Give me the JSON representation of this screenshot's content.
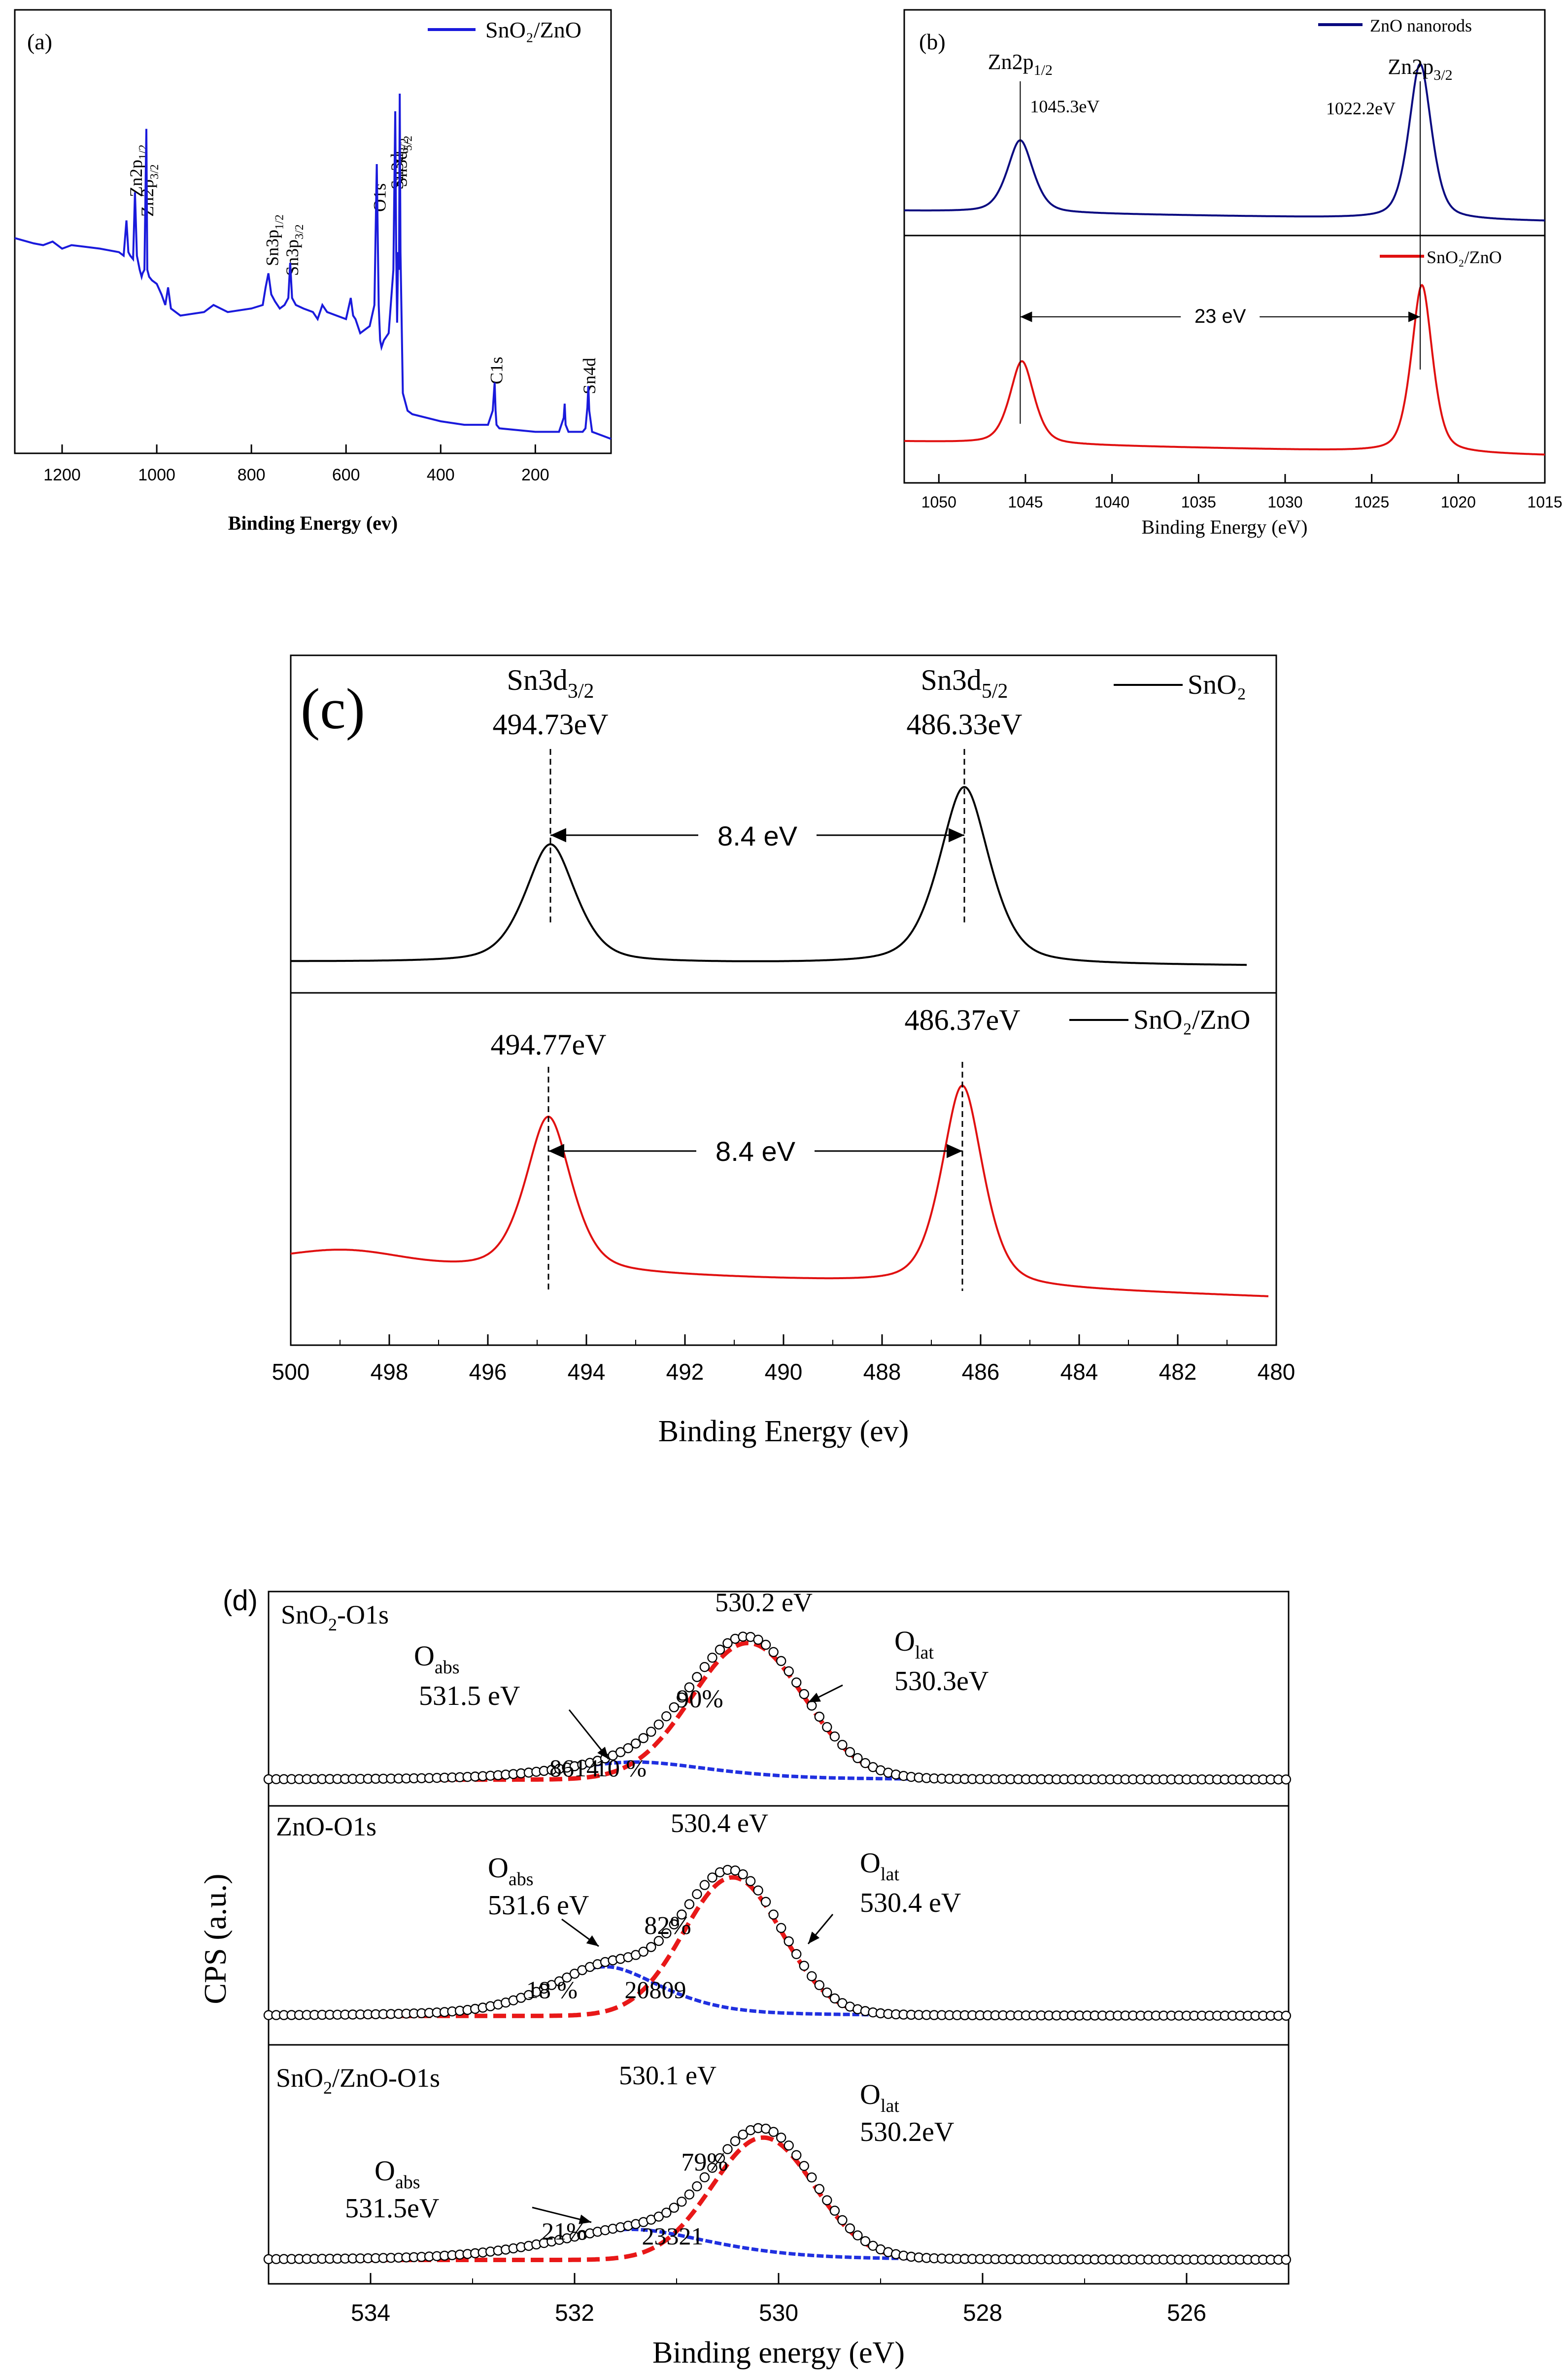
{
  "chart_data": [
    {
      "id": "a",
      "type": "line",
      "panel_label": "(a)",
      "xlabel": "Binding Energy (ev)",
      "xlim": [
        1300,
        40
      ],
      "xticks": [
        1200,
        1000,
        800,
        600,
        400,
        200
      ],
      "tick_labels": [
        "1200",
        "1000",
        "800",
        "600",
        "400",
        "200"
      ],
      "legend": [
        "SnO₂/ZnO"
      ],
      "series": [
        {
          "name": "SnO₂/ZnO",
          "color": "#1a1adc",
          "x": [
            1300,
            1260,
            1240,
            1220,
            1200,
            1180,
            1150,
            1120,
            1100,
            1080,
            1070,
            1064,
            1060,
            1056,
            1050,
            1046,
            1042,
            1036,
            1032,
            1030,
            1026,
            1022,
            1020,
            1016,
            1010,
            1000,
            990,
            982,
            976,
            970,
            950,
            900,
            880,
            850,
            800,
            776,
            770,
            764,
            758,
            750,
            740,
            730,
            722,
            718,
            714,
            706,
            690,
            670,
            660,
            650,
            640,
            620,
            600,
            590,
            585,
            580,
            570,
            560,
            550,
            540,
            535,
            531,
            528,
            525,
            520,
            510,
            500,
            496,
            494,
            492,
            490,
            488,
            486.5,
            485,
            480,
            470,
            460,
            400,
            350,
            300,
            290,
            286,
            284,
            282,
            276,
            200,
            150,
            140,
            138,
            136,
            130,
            100,
            94,
            90,
            88,
            86,
            80,
            60,
            40
          ],
          "y": [
            0.59,
            0.575,
            0.57,
            0.58,
            0.56,
            0.57,
            0.565,
            0.56,
            0.555,
            0.55,
            0.54,
            0.64,
            0.55,
            0.54,
            0.53,
            0.72,
            0.54,
            0.5,
            0.48,
            0.49,
            0.5,
            0.9,
            0.5,
            0.48,
            0.47,
            0.46,
            0.43,
            0.4,
            0.45,
            0.39,
            0.37,
            0.38,
            0.4,
            0.38,
            0.39,
            0.4,
            0.45,
            0.49,
            0.43,
            0.41,
            0.39,
            0.4,
            0.42,
            0.52,
            0.42,
            0.4,
            0.39,
            0.38,
            0.36,
            0.4,
            0.38,
            0.37,
            0.36,
            0.42,
            0.37,
            0.36,
            0.32,
            0.33,
            0.34,
            0.4,
            0.8,
            0.4,
            0.3,
            0.28,
            0.3,
            0.32,
            0.5,
            0.95,
            0.55,
            0.35,
            0.55,
            0.5,
            1.0,
            0.55,
            0.15,
            0.1,
            0.09,
            0.07,
            0.06,
            0.06,
            0.1,
            0.18,
            0.1,
            0.06,
            0.05,
            0.04,
            0.04,
            0.08,
            0.12,
            0.06,
            0.04,
            0.04,
            0.05,
            0.11,
            0.17,
            0.1,
            0.04,
            0.03,
            0.02
          ]
        }
      ],
      "annotations": [
        {
          "base": "Zn2p",
          "sub": "1/2",
          "x": 1046
        },
        {
          "base": "Zn2p",
          "sub": "3/2",
          "x": 1022
        },
        {
          "base": "Sn3p",
          "sub": "1/2",
          "x": 758
        },
        {
          "base": "Sn3p",
          "sub": "3/2",
          "x": 716
        },
        {
          "base": "O1s",
          "sub": "",
          "x": 531
        },
        {
          "base": "Sn3d",
          "sub": "3/2",
          "x": 494
        },
        {
          "base": "Sn3d",
          "sub": "5/2",
          "x": 486
        },
        {
          "base": "C1s",
          "sub": "",
          "x": 284
        },
        {
          "base": "Sn4d",
          "sub": "",
          "x": 88
        }
      ]
    },
    {
      "id": "b",
      "type": "line",
      "panel_label": "(b)",
      "xlabel": "Binding Energy (eV)",
      "xlim": [
        1052,
        1015
      ],
      "xticks": [
        1050,
        1045,
        1040,
        1035,
        1030,
        1025,
        1020,
        1015
      ],
      "tick_labels": [
        "1050",
        "1045",
        "1040",
        "1035",
        "1030",
        "1025",
        "1020",
        "1015"
      ],
      "series": [
        {
          "name": "ZnO nanorods",
          "color": "#0a0a80",
          "peaks": [
            {
              "center": 1045.3,
              "height": 0.42,
              "width": 0.8
            },
            {
              "center": 1022.2,
              "height": 0.9,
              "width": 0.7
            }
          ],
          "baseline": [
            0.12,
            0.06
          ]
        },
        {
          "name": "SnO₂/ZnO",
          "color": "#e01010",
          "peaks": [
            {
              "center": 1045.2,
              "height": 0.42,
              "width": 0.75
            },
            {
              "center": 1022.1,
              "height": 0.85,
              "width": 0.65
            }
          ],
          "baseline": [
            0.11,
            0.04
          ]
        }
      ],
      "annotations": {
        "left_peak_label_base": "Zn2p",
        "left_peak_label_sub": "1/2",
        "left_peak_value": "1045.3eV",
        "right_peak_label_base": "Zn2p",
        "right_peak_label_sub": "3/2",
        "right_peak_value": "1022.2eV",
        "separation": "23 eV",
        "left_line_x": 1045.3,
        "right_line_x": 1022.2
      }
    },
    {
      "id": "c",
      "type": "line",
      "panel_label": "(c)",
      "xlabel": "Binding Energy (ev)",
      "xlim": [
        500,
        480
      ],
      "xticks": [
        500,
        498,
        496,
        494,
        492,
        490,
        488,
        486,
        484,
        482,
        480
      ],
      "tick_labels": [
        "500",
        "498",
        "496",
        "494",
        "492",
        "490",
        "488",
        "486",
        "484",
        "482",
        "480"
      ],
      "series": [
        {
          "name": "SnO₂",
          "color": "#000000",
          "peaks": [
            {
              "center": 494.73,
              "height": 0.6,
              "width": 0.55
            },
            {
              "center": 486.33,
              "height": 0.9,
              "width": 0.55
            }
          ],
          "baseline": [
            0.02,
            0.0
          ]
        },
        {
          "name": "SnO₂/ZnO",
          "color": "#e01010",
          "peaks": [
            {
              "center": 494.77,
              "height": 0.68,
              "width": 0.5
            },
            {
              "center": 486.37,
              "height": 0.88,
              "width": 0.45
            }
          ],
          "baseline": [
            0.15,
            0.0
          ],
          "shoulder": {
            "center": 498.9,
            "height": 0.06,
            "width": 1.1
          }
        }
      ],
      "annotations": {
        "top_left_label_base": "Sn3d",
        "top_left_label_sub": "3/2",
        "top_left_value": "494.73eV",
        "top_right_label_base": "Sn3d",
        "top_right_label_sub": "5/2",
        "top_right_value": "486.33eV",
        "bottom_left_value": "494.77eV",
        "bottom_right_value": "486.37eV",
        "separation_top": "8.4 eV",
        "separation_bottom": "8.4 eV"
      }
    },
    {
      "id": "d",
      "type": "scatter",
      "panel_label": "(d)",
      "xlabel": "Binding energy (eV)",
      "ylabel": "CPS (a.u.)",
      "xlim": [
        535,
        525
      ],
      "xticks": [
        534,
        532,
        530,
        528,
        526
      ],
      "tick_labels": [
        "534",
        "532",
        "530",
        "528",
        "526"
      ],
      "panels": [
        {
          "title_base": "SnO",
          "title_sub": "2",
          "title_rest": "-O1s",
          "lat": {
            "center": 530.3,
            "height": 0.84,
            "width": 0.55
          },
          "abs": {
            "center": 531.4,
            "height": 0.12,
            "width": 0.8
          },
          "abs_name": "abs",
          "lat_name": "lat",
          "peak_value": "530.2 eV",
          "abs_value": "531.5 eV",
          "lat_value": "530.3eV",
          "abs_pct": "10 %",
          "lat_pct": "90%",
          "area_value": "8614"
        },
        {
          "title_base": "ZnO-O1s",
          "title_sub": "",
          "title_rest": "",
          "lat": {
            "center": 530.45,
            "height": 0.76,
            "width": 0.48
          },
          "abs": {
            "center": 531.7,
            "height": 0.3,
            "width": 0.6
          },
          "abs_name": "abs",
          "lat_name": "lat",
          "peak_value": "530.4 eV",
          "abs_value": "531.6 eV",
          "lat_value": "530.4 eV",
          "abs_pct": "18 %",
          "lat_pct": "82%",
          "area_value": "20809"
        },
        {
          "title_base": "SnO",
          "title_sub": "2",
          "title_rest": "/ZnO-O1s",
          "lat": {
            "center": 530.15,
            "height": 0.72,
            "width": 0.5
          },
          "abs": {
            "center": 531.45,
            "height": 0.2,
            "width": 0.85
          },
          "abs_name": "abs",
          "lat_name": "lat",
          "peak_value": "530.1 eV",
          "abs_value": "531.5eV",
          "lat_value": "530.2eV",
          "abs_pct": "21%",
          "lat_pct": "79%",
          "area_value": "23321"
        }
      ]
    }
  ]
}
